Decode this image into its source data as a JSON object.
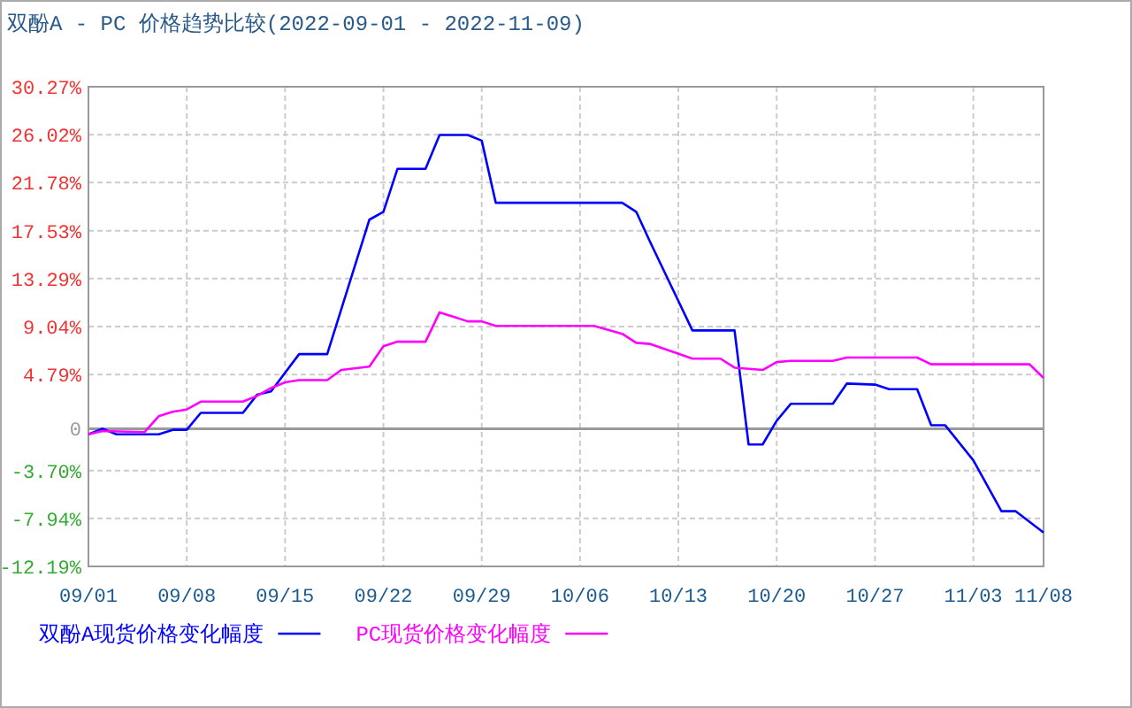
{
  "chart_data": {
    "type": "line",
    "title": "双酚A - PC 价格趋势比较(2022-09-01 - 2022-11-09)",
    "xlim": [
      "2022-09-01",
      "2022-11-08"
    ],
    "xticks": [
      {
        "value": "2022-09-01",
        "label": "09/01"
      },
      {
        "value": "2022-09-08",
        "label": "09/08"
      },
      {
        "value": "2022-09-15",
        "label": "09/15"
      },
      {
        "value": "2022-09-22",
        "label": "09/22"
      },
      {
        "value": "2022-09-29",
        "label": "09/29"
      },
      {
        "value": "2022-10-06",
        "label": "10/06"
      },
      {
        "value": "2022-10-13",
        "label": "10/13"
      },
      {
        "value": "2022-10-20",
        "label": "10/20"
      },
      {
        "value": "2022-10-27",
        "label": "10/27"
      },
      {
        "value": "2022-11-03",
        "label": "11/03"
      },
      {
        "value": "2022-11-08",
        "label": "11/08"
      }
    ],
    "ylim": [
      -12.19,
      30.27
    ],
    "yticks": [
      {
        "value": -12.19,
        "label": "-12.19%"
      },
      {
        "value": -7.94,
        "label": "-7.94%"
      },
      {
        "value": -3.7,
        "label": "-3.70%"
      },
      0,
      {
        "value": 4.79,
        "label": "4.79%"
      },
      {
        "value": 9.04,
        "label": "9.04%"
      },
      {
        "value": 13.29,
        "label": "13.29%"
      },
      {
        "value": 17.53,
        "label": "17.53%"
      },
      {
        "value": 21.78,
        "label": "21.78%"
      },
      {
        "value": 26.02,
        "label": "26.02%"
      },
      {
        "value": 30.27,
        "label": "30.27%"
      }
    ],
    "grid": true,
    "legend": "bottom",
    "marker": "none",
    "line_style": "solid",
    "ref_lines": [
      {
        "axis": "y",
        "value": 0,
        "color": "#999999"
      }
    ],
    "series": [
      {
        "name": "双酚A现货价格变化幅度",
        "color": "#0000ff",
        "x": [
          "2022-09-01",
          "2022-09-02",
          "2022-09-03",
          "2022-09-06",
          "2022-09-07",
          "2022-09-08",
          "2022-09-09",
          "2022-09-12",
          "2022-09-13",
          "2022-09-14",
          "2022-09-16",
          "2022-09-18",
          "2022-09-21",
          "2022-09-22",
          "2022-09-23",
          "2022-09-25",
          "2022-09-26",
          "2022-09-28",
          "2022-09-29",
          "2022-09-30",
          "2022-10-09",
          "2022-10-10",
          "2022-10-11",
          "2022-10-14",
          "2022-10-17",
          "2022-10-18",
          "2022-10-19",
          "2022-10-20",
          "2022-10-21",
          "2022-10-24",
          "2022-10-25",
          "2022-10-27",
          "2022-10-28",
          "2022-10-30",
          "2022-10-31",
          "2022-11-01",
          "2022-11-03",
          "2022-11-05",
          "2022-11-06",
          "2022-11-08"
        ],
        "values": [
          -0.5,
          0,
          -0.5,
          -0.5,
          -0.1,
          -0.1,
          1.4,
          1.4,
          3.0,
          3.3,
          6.6,
          6.6,
          18.5,
          19.2,
          23.0,
          23.0,
          26.0,
          26.0,
          25.5,
          20.0,
          20.0,
          19.2,
          16.5,
          8.7,
          8.7,
          -1.4,
          -1.4,
          0.7,
          2.2,
          2.2,
          4.0,
          3.9,
          3.5,
          3.5,
          0.3,
          0.3,
          -2.8,
          -7.3,
          -7.3,
          -9.2
        ]
      },
      {
        "name": "PC现货价格变化幅度",
        "color": "#ff00ff",
        "x": [
          "2022-09-01",
          "2022-09-02",
          "2022-09-05",
          "2022-09-06",
          "2022-09-07",
          "2022-09-08",
          "2022-09-09",
          "2022-09-12",
          "2022-09-13",
          "2022-09-14",
          "2022-09-15",
          "2022-09-16",
          "2022-09-18",
          "2022-09-19",
          "2022-09-21",
          "2022-09-22",
          "2022-09-23",
          "2022-09-25",
          "2022-09-26",
          "2022-09-28",
          "2022-09-29",
          "2022-09-30",
          "2022-10-07",
          "2022-10-09",
          "2022-10-10",
          "2022-10-11",
          "2022-10-14",
          "2022-10-16",
          "2022-10-17",
          "2022-10-19",
          "2022-10-20",
          "2022-10-21",
          "2022-10-24",
          "2022-10-25",
          "2022-10-30",
          "2022-10-31",
          "2022-11-07",
          "2022-11-08"
        ],
        "values": [
          -0.5,
          -0.2,
          -0.3,
          1.1,
          1.5,
          1.7,
          2.4,
          2.4,
          2.9,
          3.6,
          4.1,
          4.3,
          4.3,
          5.2,
          5.5,
          7.3,
          7.7,
          7.7,
          10.3,
          9.5,
          9.5,
          9.1,
          9.1,
          8.4,
          7.6,
          7.5,
          6.2,
          6.2,
          5.4,
          5.2,
          5.9,
          6.0,
          6.0,
          6.3,
          6.3,
          5.7,
          5.7,
          4.5
        ]
      }
    ]
  }
}
